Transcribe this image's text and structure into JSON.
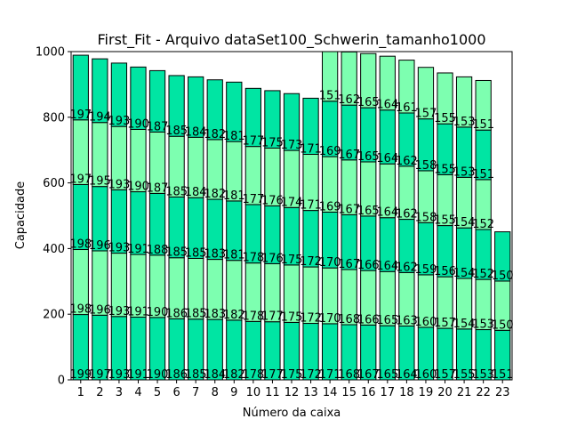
{
  "chart_data": {
    "type": "bar",
    "stacked": true,
    "title": "First_Fit - Arquivo dataSet100_Schwerin_tamanho1000",
    "xlabel": "Número da caixa",
    "ylabel": "Capacidade",
    "ylim": [
      0,
      1000
    ],
    "yticks": [
      0,
      200,
      400,
      600,
      800,
      1000
    ],
    "grid": false,
    "colors": [
      "#00e5a3",
      "#7dffb0"
    ],
    "edge_color": "#000000",
    "categories": [
      "1",
      "2",
      "3",
      "4",
      "5",
      "6",
      "7",
      "8",
      "9",
      "10",
      "11",
      "12",
      "13",
      "14",
      "15",
      "16",
      "17",
      "18",
      "19",
      "20",
      "21",
      "22",
      "23"
    ],
    "bins": [
      [
        199,
        198,
        198,
        197,
        197
      ],
      [
        197,
        196,
        196,
        195,
        194
      ],
      [
        193,
        193,
        193,
        193,
        193
      ],
      [
        191,
        191,
        191,
        190,
        190
      ],
      [
        190,
        190,
        188,
        187,
        187
      ],
      [
        186,
        186,
        185,
        185,
        185
      ],
      [
        185,
        185,
        185,
        184,
        184
      ],
      [
        184,
        183,
        183,
        182,
        182
      ],
      [
        182,
        182,
        181,
        181,
        181
      ],
      [
        178,
        178,
        178,
        177,
        177
      ],
      [
        177,
        177,
        176,
        176,
        175
      ],
      [
        175,
        175,
        175,
        174,
        173
      ],
      [
        172,
        172,
        172,
        171,
        171
      ],
      [
        171,
        170,
        170,
        169,
        169,
        151
      ],
      [
        168,
        168,
        167,
        167,
        167,
        162
      ],
      [
        167,
        166,
        166,
        165,
        165,
        165
      ],
      [
        165,
        165,
        164,
        164,
        164,
        164
      ],
      [
        164,
        163,
        162,
        162,
        162,
        161
      ],
      [
        160,
        160,
        159,
        158,
        158,
        157
      ],
      [
        157,
        157,
        156,
        155,
        155,
        155
      ],
      [
        155,
        154,
        154,
        154,
        153,
        153
      ],
      [
        153,
        153,
        152,
        152,
        151,
        151
      ],
      [
        151,
        150,
        150
      ]
    ]
  }
}
